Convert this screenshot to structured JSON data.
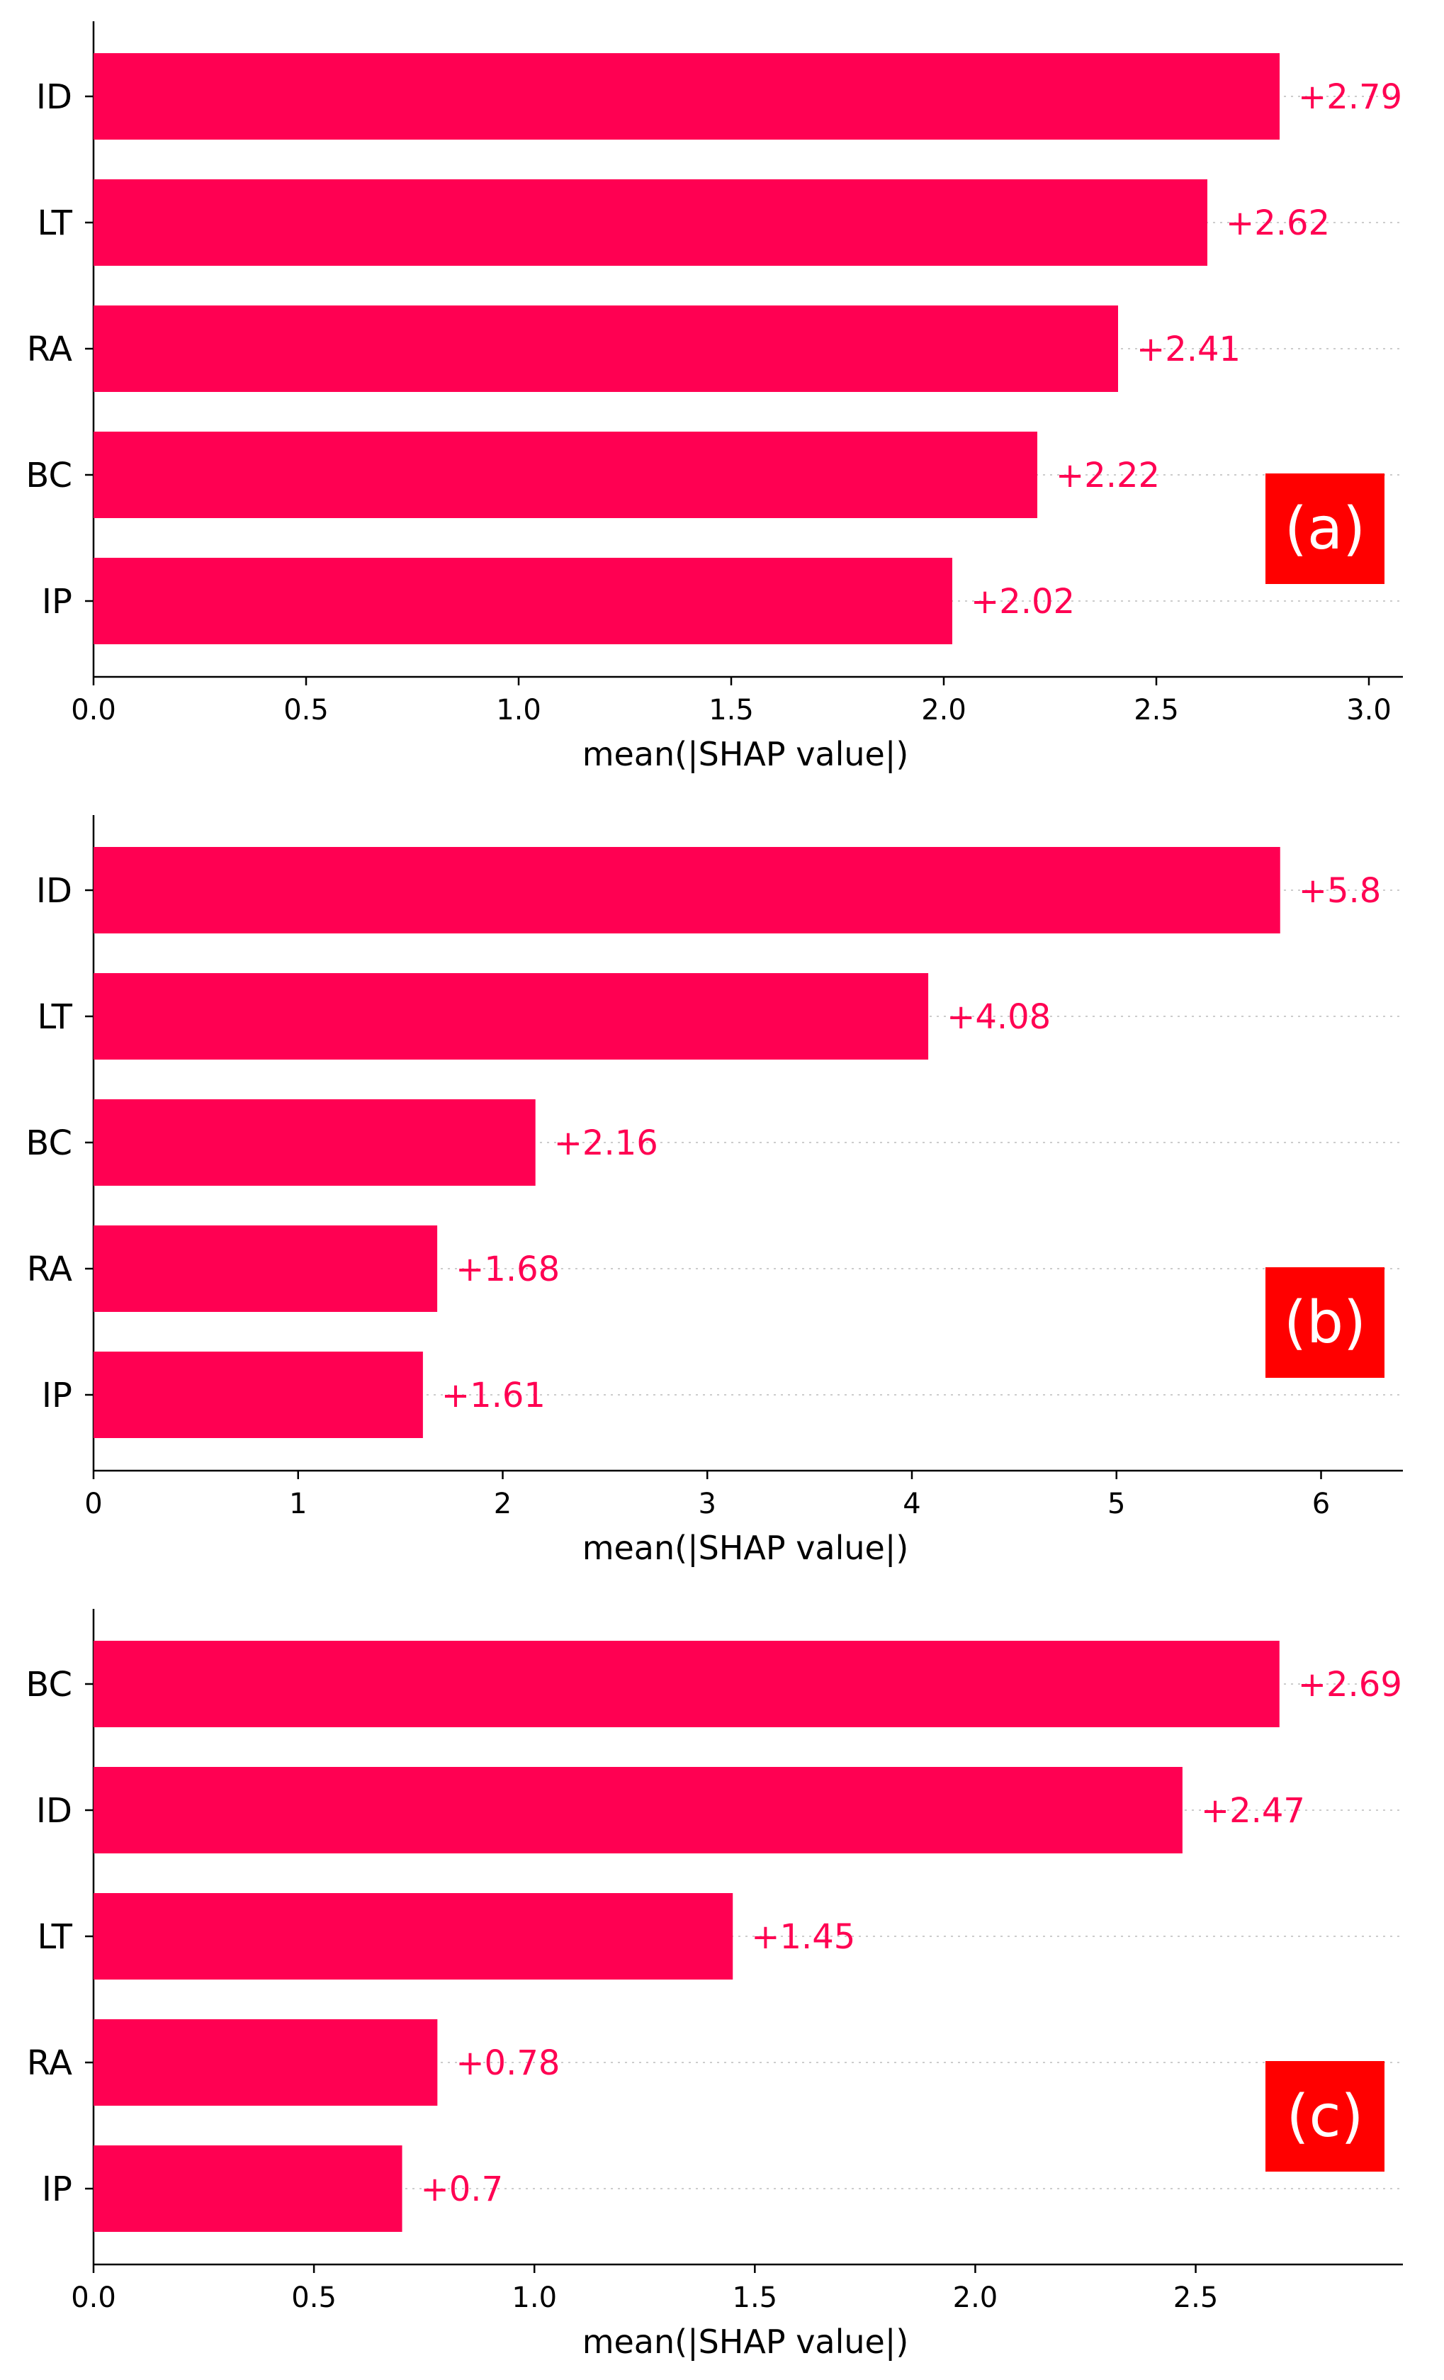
{
  "colors": {
    "bar": "#ff0052",
    "value_label": "#ff0052",
    "panel_label_bg": "#ff0000",
    "panel_label_text": "#ffffff",
    "axis": "#000000",
    "gridline": "#cccccc"
  },
  "chart_data": [
    {
      "type": "bar",
      "orientation": "horizontal",
      "panel_label": "(a)",
      "categories": [
        "ID",
        "LT",
        "RA",
        "BC",
        "IP"
      ],
      "values": [
        2.79,
        2.62,
        2.41,
        2.22,
        2.02
      ],
      "value_labels": [
        "+2.79",
        "+2.62",
        "+2.41",
        "+2.22",
        "+2.02"
      ],
      "xlabel": "mean(|SHAP value|)",
      "xlim": [
        0,
        3.08
      ],
      "xticks": [
        0.0,
        0.5,
        1.0,
        1.5,
        2.0,
        2.5,
        3.0
      ],
      "xtick_labels": [
        "0.0",
        "0.5",
        "1.0",
        "1.5",
        "2.0",
        "2.5",
        "3.0"
      ]
    },
    {
      "type": "bar",
      "orientation": "horizontal",
      "panel_label": "(b)",
      "categories": [
        "ID",
        "LT",
        "BC",
        "RA",
        "IP"
      ],
      "values": [
        5.8,
        4.08,
        2.16,
        1.68,
        1.61
      ],
      "value_labels": [
        "+5.8",
        "+4.08",
        "+2.16",
        "+1.68",
        "+1.61"
      ],
      "xlabel": "mean(|SHAP value|)",
      "xlim": [
        0,
        6.4
      ],
      "xticks": [
        0,
        1,
        2,
        3,
        4,
        5,
        6
      ],
      "xtick_labels": [
        "0",
        "1",
        "2",
        "3",
        "4",
        "5",
        "6"
      ]
    },
    {
      "type": "bar",
      "orientation": "horizontal",
      "panel_label": "(c)",
      "categories": [
        "BC",
        "ID",
        "LT",
        "RA",
        "IP"
      ],
      "values": [
        2.69,
        2.47,
        1.45,
        0.78,
        0.7
      ],
      "value_labels": [
        "+2.69",
        "+2.47",
        "+1.45",
        "+0.78",
        "+0.7"
      ],
      "xlabel": "mean(|SHAP value|)",
      "xlim": [
        0,
        2.97
      ],
      "xticks": [
        0.0,
        0.5,
        1.0,
        1.5,
        2.0,
        2.5
      ],
      "xtick_labels": [
        "0.0",
        "0.5",
        "1.0",
        "1.5",
        "2.0",
        "2.5"
      ]
    }
  ]
}
